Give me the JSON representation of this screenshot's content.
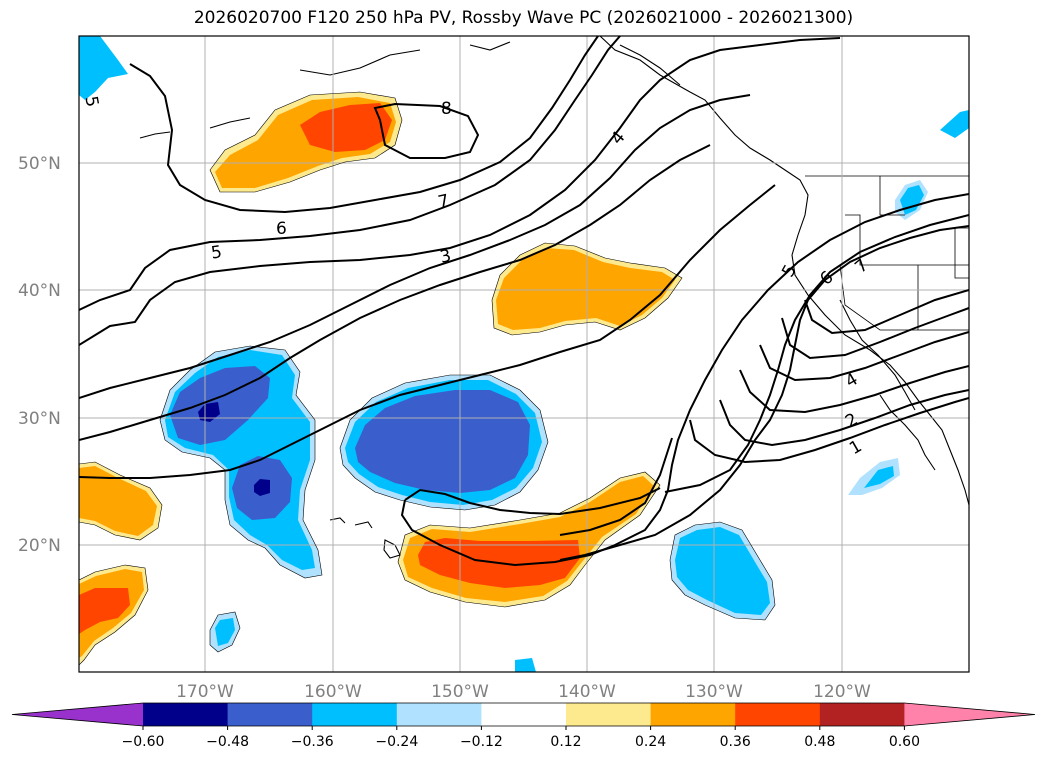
{
  "title": "2026020700 F120 250 hPa PV, Rossby Wave PC (2026021000 - 2026021300)",
  "lat_labels": [
    "50°N",
    "40°N",
    "30°N",
    "20°N"
  ],
  "lon_labels": [
    "170°W",
    "160°W",
    "150°W",
    "140°W",
    "130°W",
    "120°W"
  ],
  "colorbar": {
    "colors": [
      "#9932cc",
      "#00008b",
      "#3a5fcd",
      "#00bfff",
      "#b0e2ff",
      "#ffffff",
      "#fdea8e",
      "#ffa500",
      "#ff4500",
      "#b22222",
      "#ff82ab"
    ],
    "tick_labels": [
      "−0.60",
      "−0.48",
      "−0.36",
      "−0.24",
      "−0.12",
      "0.12",
      "0.24",
      "0.36",
      "0.48",
      "0.60"
    ]
  },
  "contour_labels": [
    "5",
    "8",
    "4",
    "7",
    "6",
    "5",
    "3",
    "5",
    "6",
    "7",
    "4",
    "2",
    "1"
  ],
  "colors": {
    "frame": "#000000",
    "grid": "#b0b0b0",
    "axis_label": "#808080"
  }
}
